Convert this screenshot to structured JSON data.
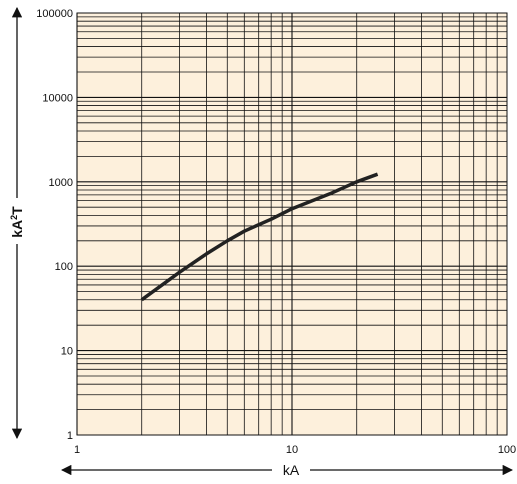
{
  "chart_data": {
    "type": "line",
    "title": "",
    "xlabel": "kA",
    "ylabel_base": "kA",
    "ylabel_sup": "2",
    "ylabel_tail": "T",
    "x_scale": "log",
    "y_scale": "log",
    "xlim": [
      1,
      100
    ],
    "ylim": [
      1,
      100000
    ],
    "x_ticks": [
      "1",
      "10",
      "100"
    ],
    "y_ticks": [
      "1",
      "10",
      "100",
      "1000",
      "10000",
      "100000"
    ],
    "grid": true,
    "background_color": "#fdf0dc",
    "grid_color": "#111111",
    "line_color": "#222222",
    "series": [
      {
        "x": [
          2,
          3,
          4,
          5,
          6,
          7,
          8,
          10,
          15,
          20,
          25
        ],
        "y": [
          40,
          85,
          140,
          200,
          260,
          310,
          360,
          480,
          720,
          1000,
          1230
        ]
      }
    ]
  }
}
